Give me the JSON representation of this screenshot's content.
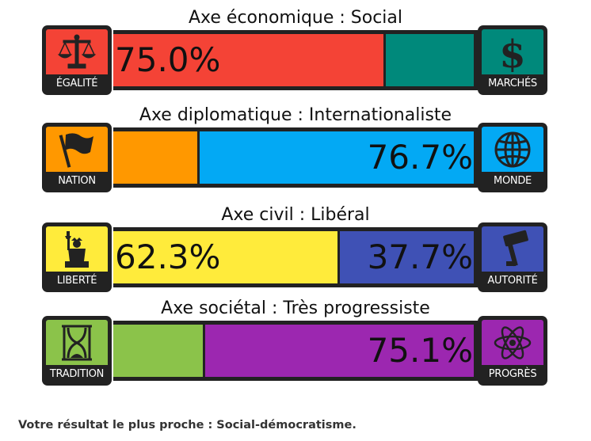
{
  "chart_data": {
    "type": "bar",
    "axes": [
      {
        "title": "Axe économique : Social",
        "left": {
          "label": "ÉGALITÉ",
          "icon": "scales-icon",
          "color": "#f44336",
          "value": 75.0,
          "value_text": "75.0%"
        },
        "right": {
          "label": "MARCHÉS",
          "icon": "dollar-icon",
          "color": "#00897b",
          "value": 25.0,
          "value_text": ""
        }
      },
      {
        "title": "Axe diplomatique : Internationaliste",
        "left": {
          "label": "NATION",
          "icon": "flag-icon",
          "color": "#ff9800",
          "value": 23.3,
          "value_text": ""
        },
        "right": {
          "label": "MONDE",
          "icon": "globe-icon",
          "color": "#03a9f4",
          "value": 76.7,
          "value_text": "76.7%"
        }
      },
      {
        "title": "Axe civil : Libéral",
        "left": {
          "label": "LIBERTÉ",
          "icon": "statue-of-liberty-icon",
          "color": "#ffeb3b",
          "value": 62.3,
          "value_text": "62.3%"
        },
        "right": {
          "label": "AUTORITÉ",
          "icon": "gavel-icon",
          "color": "#3f51b5",
          "value": 37.7,
          "value_text": "37.7%"
        }
      },
      {
        "title": "Axe sociétal : Très progressiste",
        "left": {
          "label": "TRADITION",
          "icon": "hourglass-icon",
          "color": "#8bc34a",
          "value": 24.9,
          "value_text": ""
        },
        "right": {
          "label": "PROGRÈS",
          "icon": "atom-icon",
          "color": "#9c27b0",
          "value": 75.1,
          "value_text": "75.1%"
        }
      }
    ]
  },
  "result_text": "Votre résultat le plus proche : Social-démocratisme."
}
